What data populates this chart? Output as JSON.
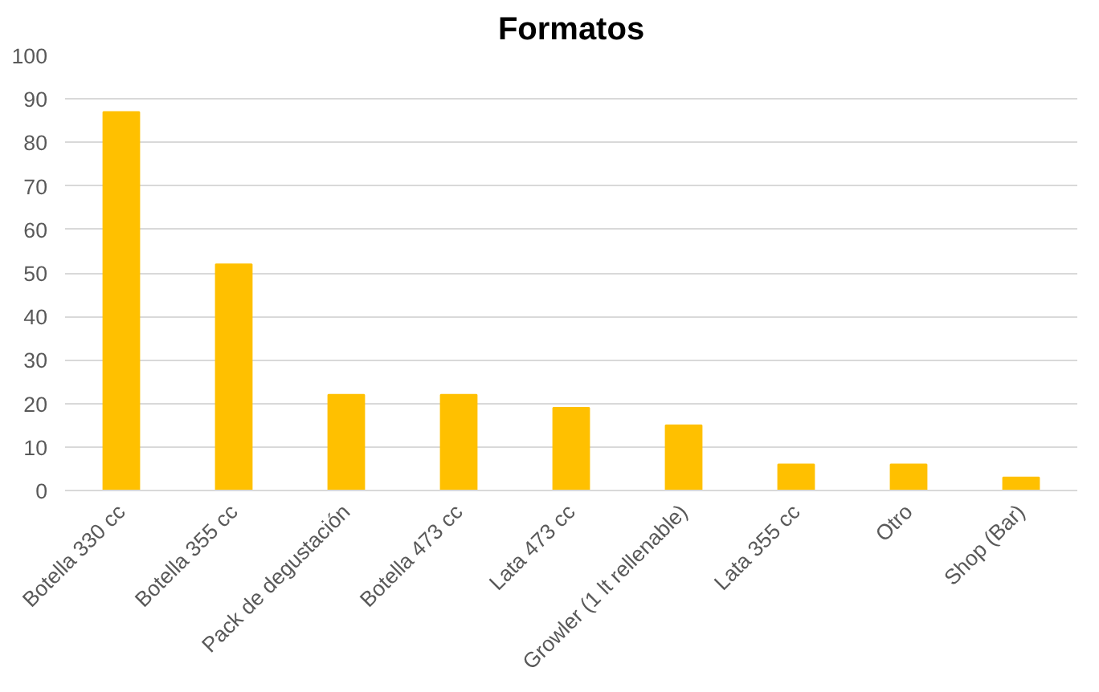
{
  "chart_data": {
    "type": "bar",
    "title": "Formatos",
    "categories": [
      "Botella 330 cc",
      "Botella 355 cc",
      "Pack de degustación",
      "Botella 473 cc",
      "Lata 473 cc",
      "Growler (1 lt rellenable)",
      "Lata 355 cc",
      "Otro",
      "Shop (Bar)"
    ],
    "values": [
      87,
      52,
      22,
      22,
      19,
      15,
      6,
      6,
      3
    ],
    "color": "#ffc000",
    "ylim": [
      0,
      100
    ],
    "yticks": [
      0,
      10,
      20,
      30,
      40,
      50,
      60,
      70,
      80,
      90,
      100
    ],
    "grid": "y"
  }
}
